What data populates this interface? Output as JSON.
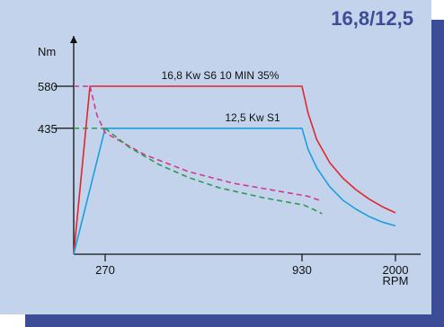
{
  "badge_text": "16,8/12,5",
  "colors": {
    "panel": "#c3d3ec",
    "shadow": "#3c4c97",
    "badge": "#3c4c97",
    "s6_curve": "#e0262d",
    "s1_curve": "#1aa0dc",
    "s6_dashed": "#d6368a",
    "s1_dashed": "#2f9a4f"
  },
  "chart_data": {
    "type": "line",
    "title": "",
    "ylabel": "Nm",
    "xlabel": "RPM",
    "xlim": [
      0,
      2000
    ],
    "ylim": [
      0,
      650
    ],
    "x_ticks": [
      {
        "value": 270,
        "label": "270"
      },
      {
        "value": 930,
        "label": "930"
      },
      {
        "value": 2000,
        "label": "2000"
      }
    ],
    "y_ticks": [
      {
        "value": 580,
        "label": "580"
      },
      {
        "value": 435,
        "label": "435"
      }
    ],
    "series": [
      {
        "name": "16,8 Kw S6 10 MIN 35%",
        "style": "solid",
        "points": [
          [
            0,
            0
          ],
          [
            140,
            580
          ],
          [
            930,
            580
          ],
          [
            1000,
            487
          ],
          [
            1100,
            395
          ],
          [
            1250,
            315
          ],
          [
            1400,
            262
          ],
          [
            1550,
            222
          ],
          [
            1700,
            190
          ],
          [
            1850,
            164
          ],
          [
            2000,
            143
          ]
        ]
      },
      {
        "name": "12,5 Kw S1",
        "style": "solid",
        "points": [
          [
            0,
            0
          ],
          [
            270,
            435
          ],
          [
            930,
            435
          ],
          [
            1000,
            362
          ],
          [
            1100,
            298
          ],
          [
            1250,
            232
          ],
          [
            1400,
            186
          ],
          [
            1550,
            155
          ],
          [
            1700,
            130
          ],
          [
            1850,
            111
          ],
          [
            2000,
            98
          ]
        ]
      },
      {
        "name": "",
        "style": "dashed",
        "points": [
          [
            140,
            580
          ],
          [
            200,
            480
          ],
          [
            270,
            420
          ],
          [
            400,
            345
          ],
          [
            550,
            285
          ],
          [
            700,
            245
          ],
          [
            850,
            218
          ],
          [
            1000,
            200
          ],
          [
            1160,
            183
          ]
        ]
      },
      {
        "name": "",
        "style": "dashed",
        "points": [
          [
            270,
            435
          ],
          [
            350,
            370
          ],
          [
            450,
            310
          ],
          [
            550,
            265
          ],
          [
            650,
            230
          ],
          [
            800,
            195
          ],
          [
            950,
            170
          ],
          [
            1060,
            155
          ],
          [
            1160,
            140
          ]
        ]
      }
    ],
    "reference_lines": [
      {
        "y": 580,
        "from_x": 0,
        "to_x": 140
      },
      {
        "y": 435,
        "from_x": 0,
        "to_x": 270
      }
    ]
  }
}
